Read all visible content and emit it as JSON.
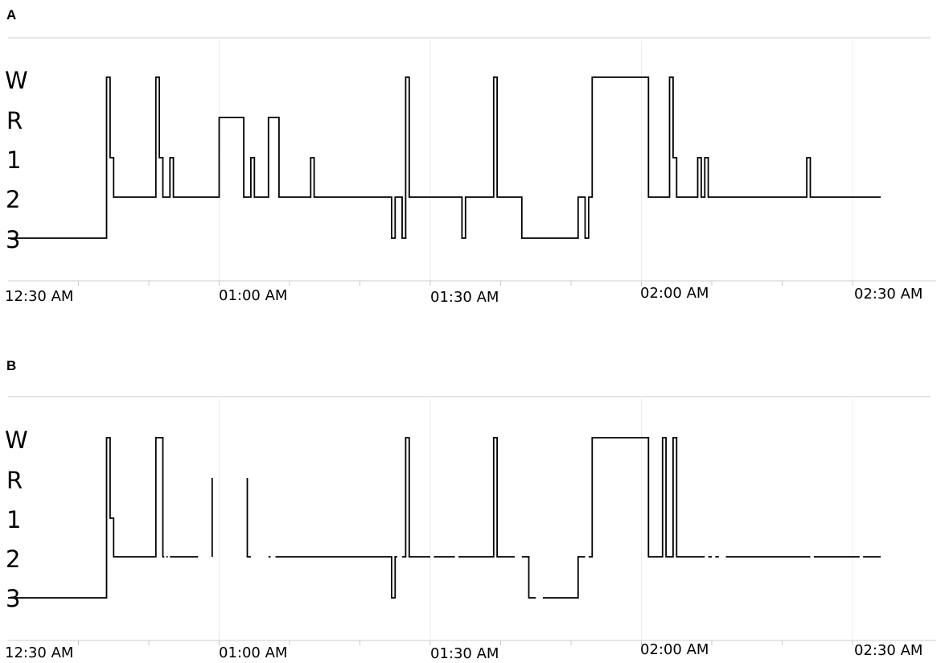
{
  "chart_data": [
    {
      "type": "line",
      "step": true,
      "panel_label": "A",
      "y_categories": [
        "W",
        "R",
        "1",
        "2",
        "3"
      ],
      "x_ticks": [
        "12:30 AM",
        "01:00 AM",
        "01:30 AM",
        "02:00 AM",
        "02:30 AM"
      ],
      "xlim": [
        "00:30",
        "02:34"
      ],
      "grid": true,
      "series": [
        {
          "segments": [
            [
              {
                "x": "00:30",
                "y": "3"
              },
              {
                "x": "00:44",
                "y": "W"
              },
              {
                "x": "00:44.5",
                "y": "1"
              },
              {
                "x": "00:45",
                "y": "2"
              },
              {
                "x": "00:51",
                "y": "W"
              },
              {
                "x": "00:51.5",
                "y": "1"
              },
              {
                "x": "00:52",
                "y": "2"
              },
              {
                "x": "00:53",
                "y": "1"
              },
              {
                "x": "00:53.5",
                "y": "2"
              },
              {
                "x": "01:00",
                "y": "R"
              },
              {
                "x": "01:03.5",
                "y": "2"
              },
              {
                "x": "01:04.5",
                "y": "1"
              },
              {
                "x": "01:05",
                "y": "2"
              },
              {
                "x": "01:07",
                "y": "R"
              },
              {
                "x": "01:08.5",
                "y": "2"
              },
              {
                "x": "01:13",
                "y": "1"
              },
              {
                "x": "01:13.5",
                "y": "2"
              },
              {
                "x": "01:24.5",
                "y": "3"
              },
              {
                "x": "01:25",
                "y": "2"
              },
              {
                "x": "01:26",
                "y": "3"
              },
              {
                "x": "01:26.5",
                "y": "W"
              },
              {
                "x": "01:27",
                "y": "2"
              },
              {
                "x": "01:34.5",
                "y": "3"
              },
              {
                "x": "01:35",
                "y": "2"
              },
              {
                "x": "01:39",
                "y": "W"
              },
              {
                "x": "01:39.5",
                "y": "2"
              },
              {
                "x": "01:43",
                "y": "3"
              },
              {
                "x": "01:51",
                "y": "2"
              },
              {
                "x": "01:52",
                "y": "3"
              },
              {
                "x": "01:52.5",
                "y": "2"
              },
              {
                "x": "01:53",
                "y": "W"
              },
              {
                "x": "02:01",
                "y": "2"
              },
              {
                "x": "02:04",
                "y": "W"
              },
              {
                "x": "02:04.5",
                "y": "1"
              },
              {
                "x": "02:05",
                "y": "2"
              },
              {
                "x": "02:08",
                "y": "1"
              },
              {
                "x": "02:08.5",
                "y": "2"
              },
              {
                "x": "02:09",
                "y": "1"
              },
              {
                "x": "02:09.5",
                "y": "2"
              },
              {
                "x": "02:23.5",
                "y": "1"
              },
              {
                "x": "02:24",
                "y": "2"
              },
              {
                "x": "02:34",
                "y": "2"
              }
            ]
          ]
        }
      ]
    },
    {
      "type": "line",
      "step": true,
      "panel_label": "B",
      "y_categories": [
        "W",
        "R",
        "1",
        "2",
        "3"
      ],
      "x_ticks": [
        "12:30 AM",
        "01:00 AM",
        "01:30 AM",
        "02:00 AM",
        "02:30 AM"
      ],
      "xlim": [
        "00:30",
        "02:34"
      ],
      "grid": true,
      "series": [
        {
          "segments": [
            [
              {
                "x": "00:30",
                "y": "3"
              },
              {
                "x": "00:43.5",
                "y": "3"
              },
              {
                "x": "00:44",
                "y": "W"
              },
              {
                "x": "00:44.5",
                "y": "1"
              },
              {
                "x": "00:45",
                "y": "2"
              },
              {
                "x": "00:51",
                "y": "W"
              },
              {
                "x": "00:52",
                "y": "2"
              },
              {
                "x": "00:52.2",
                "y": "2"
              }
            ],
            [
              {
                "x": "00:52.5",
                "y": "2"
              },
              {
                "x": "00:52.7",
                "y": "2"
              }
            ],
            [
              {
                "x": "00:53",
                "y": "2"
              },
              {
                "x": "00:57",
                "y": "2"
              }
            ],
            [
              {
                "x": "00:59",
                "y": "2"
              },
              {
                "x": "00:59",
                "y": "R"
              }
            ],
            [
              {
                "x": "01:04",
                "y": "R"
              },
              {
                "x": "01:04",
                "y": "2"
              },
              {
                "x": "01:04.5",
                "y": "2"
              }
            ],
            [
              {
                "x": "01:07",
                "y": "2"
              },
              {
                "x": "01:07.3",
                "y": "2"
              }
            ],
            [
              {
                "x": "01:08",
                "y": "2"
              },
              {
                "x": "01:24.5",
                "y": "3"
              },
              {
                "x": "01:25",
                "y": "2"
              },
              {
                "x": "01:25.3",
                "y": "2"
              }
            ],
            [
              {
                "x": "01:26",
                "y": "2"
              },
              {
                "x": "01:26.5",
                "y": "W"
              },
              {
                "x": "01:27",
                "y": "2"
              },
              {
                "x": "01:30",
                "y": "2"
              }
            ],
            [
              {
                "x": "01:30.5",
                "y": "2"
              },
              {
                "x": "01:33.5",
                "y": "2"
              }
            ],
            [
              {
                "x": "01:34",
                "y": "2"
              },
              {
                "x": "01:39",
                "y": "W"
              },
              {
                "x": "01:39.5",
                "y": "2"
              },
              {
                "x": "01:42",
                "y": "2"
              }
            ],
            [
              {
                "x": "01:43",
                "y": "2"
              },
              {
                "x": "01:44",
                "y": "3"
              },
              {
                "x": "01:45",
                "y": "3"
              }
            ],
            [
              {
                "x": "01:46",
                "y": "3"
              },
              {
                "x": "01:51",
                "y": "2"
              },
              {
                "x": "01:52",
                "y": "2"
              }
            ],
            [
              {
                "x": "01:52.5",
                "y": "2"
              },
              {
                "x": "01:53",
                "y": "W"
              },
              {
                "x": "02:01",
                "y": "2"
              },
              {
                "x": "02:03",
                "y": "W"
              },
              {
                "x": "02:03.5",
                "y": "2"
              },
              {
                "x": "02:04.5",
                "y": "W"
              },
              {
                "x": "02:05",
                "y": "2"
              },
              {
                "x": "02:09",
                "y": "2"
              }
            ],
            [
              {
                "x": "02:09.5",
                "y": "2"
              },
              {
                "x": "02:10",
                "y": "2"
              }
            ],
            [
              {
                "x": "02:10.5",
                "y": "2"
              },
              {
                "x": "02:11",
                "y": "2"
              }
            ],
            [
              {
                "x": "02:12",
                "y": "2"
              },
              {
                "x": "02:24",
                "y": "2"
              }
            ],
            [
              {
                "x": "02:24.5",
                "y": "2"
              },
              {
                "x": "02:31",
                "y": "2"
              }
            ],
            [
              {
                "x": "02:31.5",
                "y": "2"
              },
              {
                "x": "02:34",
                "y": "2"
              }
            ]
          ]
        }
      ]
    }
  ]
}
